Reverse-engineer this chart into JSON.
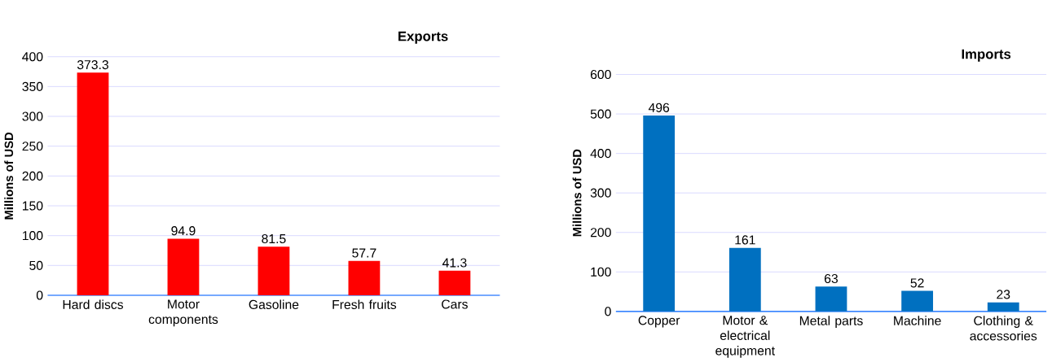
{
  "chart_data": [
    {
      "type": "bar",
      "title": "Exports",
      "ylabel": "Millions of USD",
      "categories": [
        "Hard discs",
        "Motor components",
        "Gasoline",
        "Fresh fruits",
        "Cars"
      ],
      "values": [
        373.3,
        94.9,
        81.5,
        57.7,
        41.3
      ],
      "color": "#ff0000",
      "ylim": [
        0,
        400
      ],
      "yticks": [
        0,
        50,
        100,
        150,
        200,
        250,
        300,
        350,
        400
      ],
      "grid": "y",
      "data_labels": true
    },
    {
      "type": "bar",
      "title": "Imports",
      "ylabel": "Millions of USD",
      "categories": [
        "Copper",
        "Motor & electrical equipment",
        "Metal parts",
        "Machine",
        "Clothing & accessories"
      ],
      "values": [
        496,
        161,
        63,
        52,
        23
      ],
      "color": "#0070c0",
      "ylim": [
        0,
        600
      ],
      "yticks": [
        0,
        100,
        200,
        300,
        400,
        500,
        600
      ],
      "grid": "y",
      "data_labels": true
    }
  ]
}
